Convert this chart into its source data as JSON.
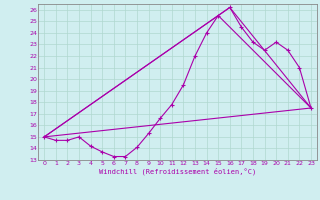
{
  "xlabel": "Windchill (Refroidissement éolien,°C)",
  "bg_color": "#d0eef0",
  "grid_color": "#b0d8d0",
  "line_color": "#aa00aa",
  "spine_color": "#888888",
  "xlim": [
    -0.5,
    23.5
  ],
  "ylim": [
    13,
    26.5
  ],
  "xticks": [
    0,
    1,
    2,
    3,
    4,
    5,
    6,
    7,
    8,
    9,
    10,
    11,
    12,
    13,
    14,
    15,
    16,
    17,
    18,
    19,
    20,
    21,
    22,
    23
  ],
  "yticks": [
    13,
    14,
    15,
    16,
    17,
    18,
    19,
    20,
    21,
    22,
    23,
    24,
    25,
    26
  ],
  "series1_x": [
    0,
    1,
    2,
    3,
    4,
    5,
    6,
    7,
    8,
    9,
    10,
    11,
    12,
    13,
    14,
    15,
    16,
    17,
    18,
    19,
    20,
    21,
    22,
    23
  ],
  "series1_y": [
    15.0,
    14.7,
    14.7,
    15.0,
    14.2,
    13.7,
    13.3,
    13.3,
    14.1,
    15.3,
    16.6,
    17.8,
    19.5,
    22.0,
    24.0,
    25.5,
    26.2,
    24.5,
    23.2,
    22.5,
    23.2,
    22.5,
    21.0,
    17.5
  ],
  "line2_x": [
    0,
    23
  ],
  "line2_y": [
    15.0,
    17.5
  ],
  "line3_x": [
    0,
    15,
    23
  ],
  "line3_y": [
    15.0,
    25.5,
    17.5
  ],
  "line4_x": [
    0,
    16,
    23
  ],
  "line4_y": [
    15.0,
    26.2,
    17.5
  ]
}
